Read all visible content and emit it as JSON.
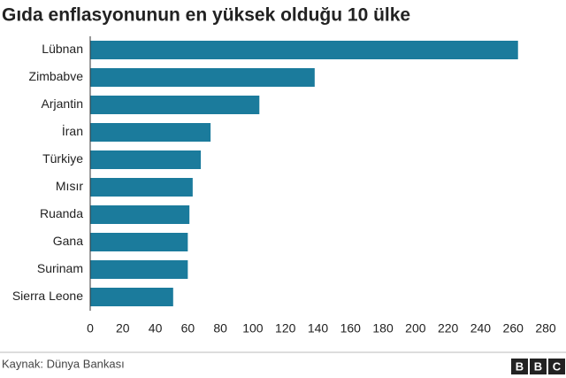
{
  "chart_data": {
    "type": "hbar",
    "title": "Gıda enflasyonunun en yüksek olduğu 10 ülke",
    "categories": [
      "Lübnan",
      "Zimbabve",
      "Arjantin",
      "İran",
      "Türkiye",
      "Mısır",
      "Ruanda",
      "Gana",
      "Surinam",
      "Sierra Leone"
    ],
    "values": [
      263,
      138,
      104,
      74,
      68,
      63,
      61,
      60,
      60,
      51
    ],
    "color": "#1b7b9c",
    "xlim": [
      0,
      280
    ],
    "xticks": [
      0,
      20,
      40,
      60,
      80,
      100,
      120,
      140,
      160,
      180,
      200,
      220,
      240,
      260,
      280
    ],
    "grid": false,
    "source": "Kaynak: Dünya Bankası",
    "logo": [
      "B",
      "B",
      "C"
    ]
  }
}
